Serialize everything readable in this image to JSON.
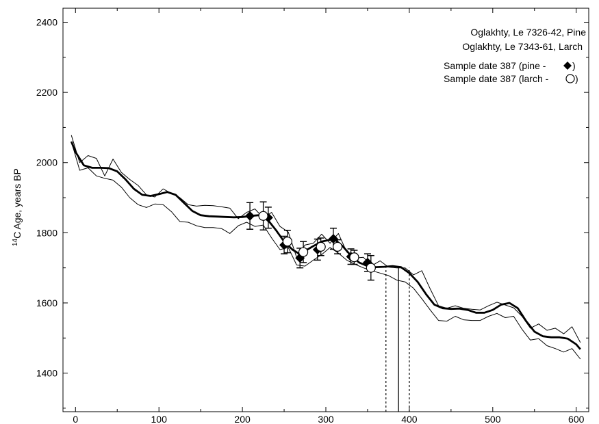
{
  "chart_data": {
    "type": "line",
    "xlabel": "",
    "ylabel": {
      "superscript": "14",
      "text": "C Age, years BP"
    },
    "xlim": [
      -15,
      615
    ],
    "ylim": [
      1290,
      2440
    ],
    "x_ticks": [
      0,
      100,
      200,
      300,
      400,
      500,
      600
    ],
    "y_ticks": [
      1400,
      1600,
      1800,
      2000,
      2200,
      2400
    ],
    "grid": false,
    "legend": {
      "placement": "top-right",
      "lines": [
        "Oglakhty, Le 7326-42, Pine",
        "Oglakhty, Le 7343-61, Larch",
        "Sample date 387 (pine -",
        "Sample date 387 (larch -"
      ],
      "markers": [
        "diamond",
        "circle"
      ]
    },
    "series": [
      {
        "role": "calibration-upper",
        "style": "thin",
        "points": [
          [
            -5,
            2078
          ],
          [
            5,
            2000
          ],
          [
            15,
            2020
          ],
          [
            25,
            2012
          ],
          [
            35,
            1962
          ],
          [
            45,
            2010
          ],
          [
            55,
            1972
          ],
          [
            65,
            1952
          ],
          [
            75,
            1935
          ],
          [
            85,
            1908
          ],
          [
            95,
            1902
          ],
          [
            105,
            1925
          ],
          [
            115,
            1912
          ],
          [
            125,
            1900
          ],
          [
            135,
            1880
          ],
          [
            145,
            1876
          ],
          [
            155,
            1878
          ],
          [
            165,
            1877
          ],
          [
            175,
            1874
          ],
          [
            185,
            1870
          ],
          [
            195,
            1840
          ],
          [
            205,
            1858
          ],
          [
            215,
            1868
          ],
          [
            225,
            1842
          ],
          [
            235,
            1858
          ],
          [
            245,
            1818
          ],
          [
            255,
            1802
          ],
          [
            265,
            1730
          ],
          [
            275,
            1765
          ],
          [
            285,
            1770
          ],
          [
            295,
            1796
          ],
          [
            305,
            1770
          ],
          [
            315,
            1798
          ],
          [
            325,
            1745
          ],
          [
            335,
            1728
          ],
          [
            345,
            1730
          ],
          [
            355,
            1706
          ],
          [
            365,
            1720
          ],
          [
            375,
            1702
          ],
          [
            385,
            1700
          ],
          [
            395,
            1700
          ],
          [
            405,
            1680
          ],
          [
            415,
            1692
          ],
          [
            425,
            1640
          ],
          [
            435,
            1592
          ],
          [
            445,
            1585
          ],
          [
            455,
            1592
          ],
          [
            465,
            1585
          ],
          [
            475,
            1582
          ],
          [
            485,
            1580
          ],
          [
            495,
            1592
          ],
          [
            505,
            1602
          ],
          [
            515,
            1594
          ],
          [
            525,
            1586
          ],
          [
            535,
            1562
          ],
          [
            545,
            1528
          ],
          [
            555,
            1540
          ],
          [
            565,
            1522
          ],
          [
            575,
            1528
          ],
          [
            585,
            1512
          ],
          [
            595,
            1532
          ],
          [
            605,
            1487
          ]
        ]
      },
      {
        "role": "calibration-lower",
        "style": "thin",
        "points": [
          [
            -5,
            2060
          ],
          [
            5,
            1978
          ],
          [
            15,
            1985
          ],
          [
            25,
            1962
          ],
          [
            35,
            1955
          ],
          [
            45,
            1950
          ],
          [
            55,
            1930
          ],
          [
            65,
            1900
          ],
          [
            75,
            1880
          ],
          [
            85,
            1872
          ],
          [
            95,
            1882
          ],
          [
            105,
            1880
          ],
          [
            115,
            1860
          ],
          [
            125,
            1832
          ],
          [
            135,
            1830
          ],
          [
            145,
            1820
          ],
          [
            155,
            1815
          ],
          [
            165,
            1815
          ],
          [
            175,
            1812
          ],
          [
            185,
            1798
          ],
          [
            195,
            1820
          ],
          [
            205,
            1830
          ],
          [
            215,
            1818
          ],
          [
            225,
            1822
          ],
          [
            235,
            1785
          ],
          [
            245,
            1752
          ],
          [
            255,
            1758
          ],
          [
            265,
            1708
          ],
          [
            275,
            1705
          ],
          [
            285,
            1722
          ],
          [
            295,
            1738
          ],
          [
            305,
            1758
          ],
          [
            315,
            1742
          ],
          [
            325,
            1722
          ],
          [
            335,
            1710
          ],
          [
            345,
            1700
          ],
          [
            355,
            1692
          ],
          [
            365,
            1685
          ],
          [
            375,
            1678
          ],
          [
            385,
            1665
          ],
          [
            395,
            1660
          ],
          [
            405,
            1642
          ],
          [
            415,
            1612
          ],
          [
            425,
            1580
          ],
          [
            435,
            1550
          ],
          [
            445,
            1548
          ],
          [
            455,
            1562
          ],
          [
            465,
            1552
          ],
          [
            475,
            1550
          ],
          [
            485,
            1550
          ],
          [
            495,
            1562
          ],
          [
            505,
            1570
          ],
          [
            515,
            1558
          ],
          [
            525,
            1562
          ],
          [
            535,
            1525
          ],
          [
            545,
            1494
          ],
          [
            555,
            1498
          ],
          [
            565,
            1478
          ],
          [
            575,
            1470
          ],
          [
            585,
            1460
          ],
          [
            595,
            1470
          ],
          [
            605,
            1440
          ]
        ]
      },
      {
        "role": "calibration-curve",
        "style": "thick",
        "points": [
          [
            -5,
            2060
          ],
          [
            0,
            2030
          ],
          [
            10,
            1992
          ],
          [
            20,
            1985
          ],
          [
            30,
            1985
          ],
          [
            40,
            1984
          ],
          [
            50,
            1975
          ],
          [
            60,
            1952
          ],
          [
            70,
            1925
          ],
          [
            80,
            1908
          ],
          [
            90,
            1905
          ],
          [
            100,
            1910
          ],
          [
            110,
            1916
          ],
          [
            120,
            1908
          ],
          [
            130,
            1885
          ],
          [
            140,
            1862
          ],
          [
            150,
            1850
          ],
          [
            160,
            1847
          ],
          [
            170,
            1846
          ],
          [
            180,
            1845
          ],
          [
            190,
            1844
          ],
          [
            200,
            1845
          ],
          [
            210,
            1848
          ],
          [
            220,
            1850
          ],
          [
            230,
            1838
          ],
          [
            240,
            1808
          ],
          [
            250,
            1775
          ],
          [
            260,
            1752
          ],
          [
            268,
            1740
          ],
          [
            275,
            1748
          ],
          [
            285,
            1762
          ],
          [
            295,
            1775
          ],
          [
            305,
            1780
          ],
          [
            312,
            1778
          ],
          [
            320,
            1762
          ],
          [
            330,
            1735
          ],
          [
            340,
            1715
          ],
          [
            350,
            1705
          ],
          [
            360,
            1702
          ],
          [
            370,
            1703
          ],
          [
            380,
            1705
          ],
          [
            390,
            1702
          ],
          [
            400,
            1685
          ],
          [
            410,
            1660
          ],
          [
            420,
            1625
          ],
          [
            430,
            1595
          ],
          [
            440,
            1585
          ],
          [
            450,
            1583
          ],
          [
            460,
            1584
          ],
          [
            470,
            1580
          ],
          [
            480,
            1572
          ],
          [
            490,
            1572
          ],
          [
            500,
            1580
          ],
          [
            510,
            1595
          ],
          [
            520,
            1600
          ],
          [
            530,
            1585
          ],
          [
            540,
            1548
          ],
          [
            550,
            1518
          ],
          [
            560,
            1505
          ],
          [
            570,
            1502
          ],
          [
            580,
            1502
          ],
          [
            590,
            1498
          ],
          [
            600,
            1482
          ],
          [
            605,
            1468
          ]
        ]
      }
    ],
    "samples": [
      {
        "name": "pine",
        "marker": "diamond",
        "points": [
          {
            "x": 209,
            "y": 1848,
            "err": 38
          },
          {
            "x": 231,
            "y": 1843,
            "err": 30
          },
          {
            "x": 250,
            "y": 1765,
            "err": 25
          },
          {
            "x": 269,
            "y": 1728,
            "err": 28
          },
          {
            "x": 290,
            "y": 1752,
            "err": 30
          },
          {
            "x": 309,
            "y": 1783,
            "err": 30
          },
          {
            "x": 330,
            "y": 1732,
            "err": 22
          },
          {
            "x": 350,
            "y": 1715,
            "err": 25
          }
        ]
      },
      {
        "name": "larch",
        "marker": "circle",
        "points": [
          {
            "x": 225,
            "y": 1848,
            "err": 40
          },
          {
            "x": 254,
            "y": 1775,
            "err": 32
          },
          {
            "x": 273,
            "y": 1745,
            "err": 30
          },
          {
            "x": 294,
            "y": 1760,
            "err": 25
          },
          {
            "x": 314,
            "y": 1760,
            "err": 20
          },
          {
            "x": 334,
            "y": 1730,
            "err": 20
          },
          {
            "x": 354,
            "y": 1700,
            "err": 35
          }
        ]
      }
    ],
    "date_lines": [
      {
        "x": 372,
        "style": "dotted"
      },
      {
        "x": 387,
        "style": "solid"
      },
      {
        "x": 400,
        "style": "dotted"
      }
    ]
  }
}
